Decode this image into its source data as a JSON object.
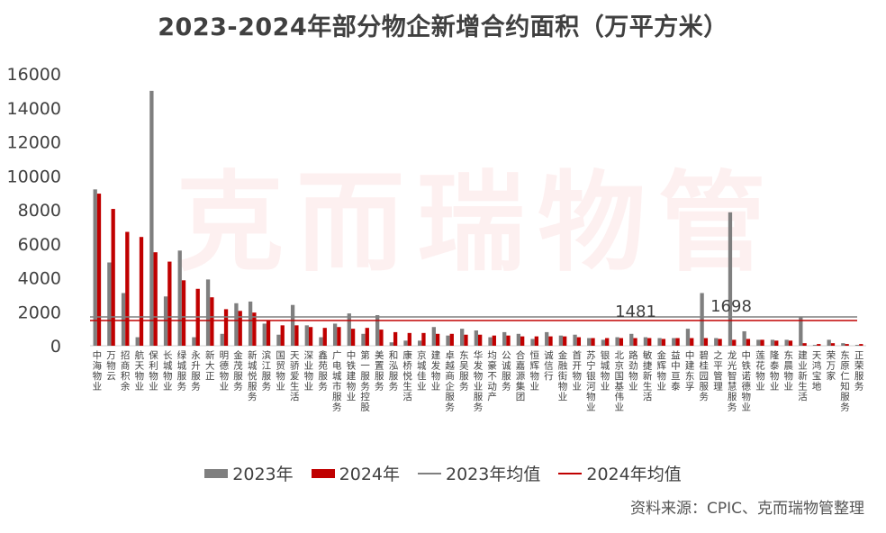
{
  "chart_data": {
    "type": "bar",
    "title": "2023-2024年部分物企新增合约面积（万平方米）",
    "ylim": [
      0,
      16000
    ],
    "yticks": [
      0,
      2000,
      4000,
      6000,
      8000,
      10000,
      12000,
      14000,
      16000
    ],
    "categories": [
      "中海物业",
      "万物云",
      "招商积余",
      "航天物业",
      "保利物业",
      "长城物业",
      "绿城服务",
      "永升服务",
      "新大正",
      "明德物业",
      "金茂服务",
      "新城悦服务",
      "滨江服务",
      "国贸物业",
      "天骄爱生活",
      "深业物业",
      "鑫苑服务",
      "广电城市服务",
      "中铁建物业",
      "第一服务控股",
      "美置服务",
      "和泓服务",
      "康桥悦生活",
      "京城佳业",
      "建发物业",
      "卓越商企服务",
      "东吴服务",
      "华发物业服务",
      "均豪不动产",
      "公诚服务",
      "合嘉源集团",
      "恒辉物业",
      "诚信行",
      "金融街物业",
      "首开物业",
      "苏宁银河物业",
      "银城物业",
      "北京国基伟业",
      "路劲物业",
      "敏捷新生活",
      "金辉物业",
      "益中亘泰",
      "中建东孚",
      "碧桂园服务",
      "之平管理",
      "龙光智慧服务",
      "中铁诺德物业",
      "莲花物业",
      "隆泰物业",
      "东晨物业",
      "建业新生活",
      "天鸿宝地",
      "荣万家",
      "东原仁知服务",
      "正荣服务"
    ],
    "series": [
      {
        "name": "2023年",
        "color": "#7f7f7f",
        "values": [
          9200,
          4900,
          3100,
          500,
          15000,
          2900,
          5600,
          500,
          3900,
          700,
          2500,
          2600,
          1300,
          650,
          2400,
          1200,
          500,
          1300,
          1900,
          700,
          1800,
          200,
          300,
          300,
          1100,
          600,
          1000,
          900,
          500,
          800,
          700,
          400,
          800,
          600,
          650,
          450,
          350,
          500,
          700,
          500,
          450,
          450,
          1000,
          3100,
          450,
          7850,
          850,
          350,
          350,
          350,
          1700,
          50,
          350,
          150,
          50
        ]
      },
      {
        "name": "2024年",
        "color": "#c00000",
        "values": [
          8950,
          8050,
          6700,
          6400,
          5500,
          4950,
          3850,
          3350,
          2850,
          2150,
          2050,
          1950,
          1500,
          1200,
          1200,
          1100,
          1050,
          1100,
          1000,
          1050,
          950,
          800,
          750,
          750,
          700,
          700,
          650,
          650,
          600,
          600,
          550,
          550,
          550,
          550,
          500,
          450,
          450,
          450,
          450,
          450,
          400,
          450,
          450,
          450,
          400,
          350,
          400,
          350,
          300,
          300,
          150,
          100,
          150,
          100,
          100
        ]
      }
    ],
    "averages": [
      {
        "name": "2023年均值",
        "value": 1698,
        "label": "1698",
        "color": "#7f7f7f"
      },
      {
        "name": "2024年均值",
        "value": 1481,
        "label": "1481",
        "color": "#c00000"
      }
    ],
    "legend_position": "bottom"
  },
  "watermark": "克而瑞物管",
  "source": "资料来源：CPIC、克而瑞物管整理"
}
